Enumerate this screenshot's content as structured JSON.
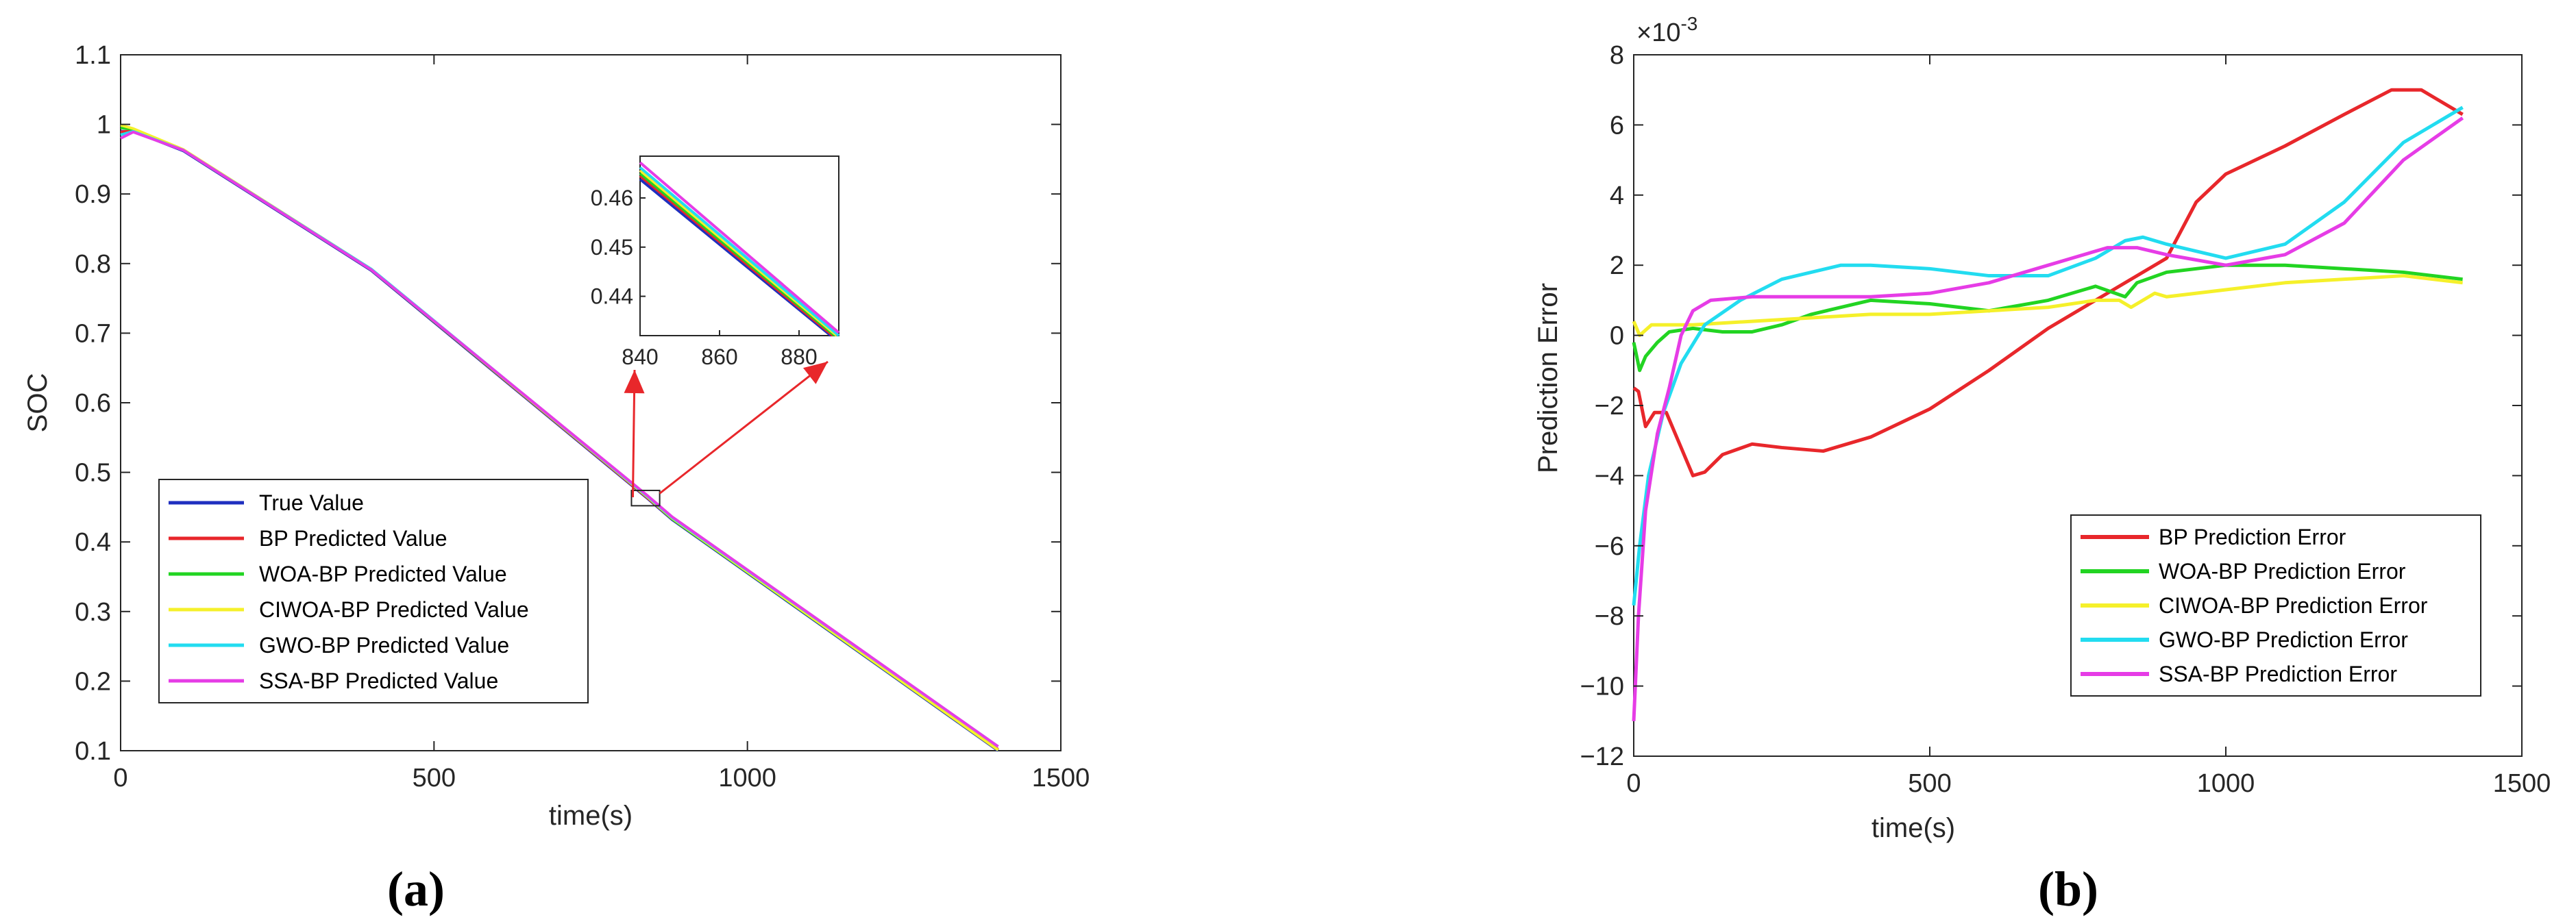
{
  "colors": {
    "true_value": "#1f2fbf",
    "bp": "#e8272b",
    "woa": "#22d422",
    "ciwoa": "#f5f02a",
    "gwo": "#22dcf0",
    "ssa": "#e63ce6",
    "arrow": "#e8272b"
  },
  "chart_data": [
    {
      "type": "line",
      "panel_label": "a",
      "xlabel": "time(s)",
      "ylabel": "SOC",
      "xlim": [
        0,
        1500
      ],
      "ylim": [
        0.1,
        1.1
      ],
      "xticks": [
        0,
        500,
        1000,
        1500
      ],
      "yticks": [
        "0.1",
        "0.2",
        "0.3",
        "0.4",
        "0.5",
        "0.6",
        "0.7",
        "0.8",
        "0.9",
        "1",
        "1.1"
      ],
      "legend_position": "bottom-left",
      "series": [
        {
          "name": "True Value",
          "color_key": "true_value",
          "x": [
            0,
            20,
            100,
            400,
            840,
            880,
            1400
          ],
          "y": [
            0.99,
            0.99,
            0.962,
            0.79,
            0.463,
            0.432,
            0.1
          ]
        },
        {
          "name": "BP Predicted Value",
          "color_key": "bp",
          "x": [
            0,
            20,
            100,
            400,
            840,
            880,
            1400
          ],
          "y": [
            0.989,
            0.991,
            0.963,
            0.791,
            0.464,
            0.433,
            0.102
          ]
        },
        {
          "name": "WOA-BP Predicted Value",
          "color_key": "woa",
          "x": [
            0,
            20,
            100,
            400,
            840,
            880,
            1400
          ],
          "y": [
            0.995,
            0.993,
            0.963,
            0.791,
            0.465,
            0.433,
            0.101
          ]
        },
        {
          "name": "CIWOA-BP Predicted Value",
          "color_key": "ciwoa",
          "x": [
            0,
            20,
            100,
            400,
            840,
            880,
            1400
          ],
          "y": [
            0.999,
            0.994,
            0.964,
            0.792,
            0.465,
            0.434,
            0.101
          ]
        },
        {
          "name": "GWO-BP Predicted Value",
          "color_key": "gwo",
          "x": [
            0,
            20,
            100,
            400,
            840,
            880,
            1400
          ],
          "y": [
            0.985,
            0.99,
            0.963,
            0.792,
            0.466,
            0.435,
            0.106
          ]
        },
        {
          "name": "SSA-BP Predicted Value",
          "color_key": "ssa",
          "x": [
            0,
            20,
            100,
            400,
            840,
            880,
            1400
          ],
          "y": [
            0.98,
            0.989,
            0.963,
            0.791,
            0.467,
            0.436,
            0.106
          ]
        }
      ],
      "inset": {
        "xlim": [
          840,
          890
        ],
        "ylim": [
          0.432,
          0.4685
        ],
        "xticks": [
          840,
          860,
          880
        ],
        "yticks": [
          "0.44",
          "0.45",
          "0.46"
        ],
        "zoom_box_x": [
          815,
          860
        ],
        "zoom_box_y": [
          0.452,
          0.474
        ],
        "series": [
          {
            "color_key": "true_value",
            "x": [
              840,
              888
            ],
            "y": [
              0.4638,
              0.432
            ]
          },
          {
            "color_key": "bp",
            "x": [
              840,
              888.5
            ],
            "y": [
              0.4645,
              0.432
            ]
          },
          {
            "color_key": "woa",
            "x": [
              840,
              889
            ],
            "y": [
              0.465,
              0.432
            ]
          },
          {
            "color_key": "ciwoa",
            "x": [
              840,
              889.5
            ],
            "y": [
              0.4656,
              0.432
            ]
          },
          {
            "color_key": "gwo",
            "x": [
              840,
              890
            ],
            "y": [
              0.4662,
              0.432
            ]
          },
          {
            "color_key": "ssa",
            "x": [
              840,
              890
            ],
            "y": [
              0.4672,
              0.4326
            ]
          }
        ]
      }
    },
    {
      "type": "line",
      "panel_label": "b",
      "xlabel": "time(s)",
      "ylabel": "Prediction Error",
      "y_multiplier": "×10",
      "y_multiplier_exp": "-3",
      "xlim": [
        0,
        1500
      ],
      "ylim": [
        -12,
        8
      ],
      "xticks": [
        0,
        500,
        1000,
        1500
      ],
      "yticks": [
        "-12",
        "-10",
        "-8",
        "-6",
        "-4",
        "-2",
        "0",
        "2",
        "4",
        "6",
        "8"
      ],
      "legend_position": "bottom-right",
      "series": [
        {
          "name": "BP Prediction Error",
          "color_key": "bp",
          "x": [
            0,
            8,
            20,
            35,
            55,
            75,
            100,
            120,
            150,
            200,
            250,
            320,
            400,
            500,
            600,
            700,
            800,
            900,
            950,
            1000,
            1100,
            1200,
            1280,
            1330,
            1400
          ],
          "y": [
            -1.5,
            -1.6,
            -2.6,
            -2.2,
            -2.2,
            -3.0,
            -4.0,
            -3.9,
            -3.4,
            -3.1,
            -3.2,
            -3.3,
            -2.9,
            -2.1,
            -1.0,
            0.2,
            1.2,
            2.2,
            3.8,
            4.6,
            5.4,
            6.3,
            7.0,
            7.0,
            6.3
          ]
        },
        {
          "name": "WOA-BP Prediction Error",
          "color_key": "woa",
          "x": [
            0,
            10,
            20,
            40,
            60,
            100,
            150,
            200,
            250,
            300,
            400,
            500,
            600,
            700,
            780,
            830,
            850,
            900,
            1000,
            1100,
            1200,
            1300,
            1400
          ],
          "y": [
            -0.2,
            -1.0,
            -0.6,
            -0.2,
            0.1,
            0.2,
            0.1,
            0.1,
            0.3,
            0.6,
            1.0,
            0.9,
            0.7,
            1.0,
            1.4,
            1.1,
            1.5,
            1.8,
            2.0,
            2.0,
            1.9,
            1.8,
            1.6
          ]
        },
        {
          "name": "CIWOA-BP Prediction Error",
          "color_key": "ciwoa",
          "x": [
            0,
            10,
            30,
            60,
            100,
            200,
            300,
            400,
            500,
            600,
            700,
            780,
            820,
            840,
            860,
            880,
            900,
            1000,
            1100,
            1200,
            1300,
            1400
          ],
          "y": [
            0.4,
            0.0,
            0.3,
            0.3,
            0.3,
            0.4,
            0.5,
            0.6,
            0.6,
            0.7,
            0.8,
            1.0,
            1.0,
            0.8,
            1.0,
            1.2,
            1.1,
            1.3,
            1.5,
            1.6,
            1.7,
            1.5
          ]
        },
        {
          "name": "GWO-BP Prediction Error",
          "color_key": "gwo",
          "x": [
            0,
            10,
            25,
            50,
            80,
            120,
            180,
            250,
            350,
            400,
            500,
            600,
            700,
            780,
            830,
            860,
            900,
            1000,
            1100,
            1200,
            1300,
            1400
          ],
          "y": [
            -7.7,
            -6.0,
            -4.0,
            -2.2,
            -0.8,
            0.3,
            1.0,
            1.6,
            2.0,
            2.0,
            1.9,
            1.7,
            1.7,
            2.2,
            2.7,
            2.8,
            2.6,
            2.2,
            2.6,
            3.8,
            5.5,
            6.5
          ]
        },
        {
          "name": "SSA-BP Prediction Error",
          "color_key": "ssa",
          "x": [
            0,
            8,
            20,
            40,
            60,
            80,
            100,
            130,
            200,
            300,
            400,
            500,
            600,
            700,
            800,
            850,
            900,
            1000,
            1100,
            1200,
            1300,
            1400
          ],
          "y": [
            -11.0,
            -8.0,
            -5.0,
            -2.8,
            -1.5,
            0.0,
            0.7,
            1.0,
            1.1,
            1.1,
            1.1,
            1.2,
            1.5,
            2.0,
            2.5,
            2.5,
            2.3,
            2.0,
            2.3,
            3.2,
            5.0,
            6.2
          ]
        }
      ]
    }
  ]
}
